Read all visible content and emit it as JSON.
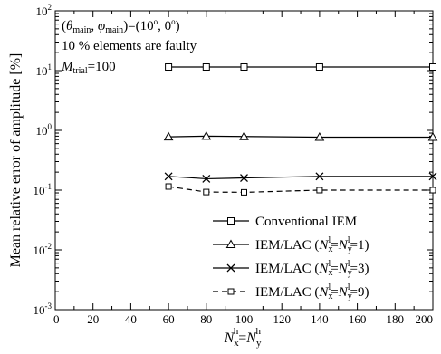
{
  "chart_data": {
    "type": "line",
    "title": "",
    "xlabel": {
      "base": "N",
      "sub": "x",
      "sup": "h",
      "eq": "=",
      "base2": "N",
      "sub2": "y",
      "sup2": "h"
    },
    "ylabel": "Mean relative error of amplitude [%]",
    "xlim": [
      0,
      200
    ],
    "ylim": [
      0.001,
      100
    ],
    "yscale": "log",
    "grid": false,
    "legend_position": "bottom-right",
    "x_ticks": [
      {
        "value": 0,
        "label": "0"
      },
      {
        "value": 20,
        "label": "20"
      },
      {
        "value": 40,
        "label": "40"
      },
      {
        "value": 60,
        "label": "60"
      },
      {
        "value": 80,
        "label": "80"
      },
      {
        "value": 100,
        "label": "100"
      },
      {
        "value": 120,
        "label": "120"
      },
      {
        "value": 140,
        "label": "140"
      },
      {
        "value": 160,
        "label": "160"
      },
      {
        "value": 180,
        "label": "180"
      },
      {
        "value": 200,
        "label": "200"
      }
    ],
    "y_ticks": [
      {
        "value": 0.001,
        "base": "10",
        "exp": "-3"
      },
      {
        "value": 0.01,
        "base": "10",
        "exp": "-2"
      },
      {
        "value": 0.1,
        "base": "10",
        "exp": "-1"
      },
      {
        "value": 1,
        "base": "10",
        "exp": "0"
      },
      {
        "value": 10,
        "base": "10",
        "exp": "1"
      },
      {
        "value": 100,
        "base": "10",
        "exp": "2"
      }
    ],
    "annotations": {
      "line1": {
        "open": "(",
        "theta": "θ",
        "theta_sub": "main",
        "comma": ", ",
        "phi": "φ",
        "phi_sub": "main",
        "eq": ")=(10",
        "deg": "o",
        "mid": ", 0",
        "deg2": "o",
        "close": ")"
      },
      "line2": "10 % elements are faulty",
      "line3": {
        "base": "M",
        "sub": "trial",
        "eq": "=100"
      }
    },
    "x": [
      60,
      80,
      100,
      140,
      200
    ],
    "series": [
      {
        "legend": {
          "text": "Conventional IEM"
        },
        "marker": "square",
        "dash": "",
        "values": [
          11.5,
          11.5,
          11.5,
          11.5,
          11.5
        ]
      },
      {
        "legend": {
          "pre": "IEM/LAC (",
          "n1": "N",
          "s1": "x",
          "p1": "l",
          "eq": "=",
          "n2": "N",
          "s2": "y",
          "p2": "l",
          "post": "=1)"
        },
        "marker": "triangle",
        "dash": "",
        "values": [
          0.78,
          0.8,
          0.79,
          0.77,
          0.77
        ]
      },
      {
        "legend": {
          "pre": "IEM/LAC (",
          "n1": "N",
          "s1": "x",
          "p1": "l",
          "eq": "=",
          "n2": "N",
          "s2": "y",
          "p2": "l",
          "post": "=3)"
        },
        "marker": "x",
        "dash": "",
        "values": [
          0.17,
          0.155,
          0.16,
          0.17,
          0.17
        ]
      },
      {
        "legend": {
          "pre": "IEM/LAC (",
          "n1": "N",
          "s1": "x",
          "p1": "l",
          "eq": "=",
          "n2": "N",
          "s2": "y",
          "p2": "l",
          "post": "=9)"
        },
        "marker": "square-small",
        "dash": "6,4",
        "values": [
          0.115,
          0.093,
          0.092,
          0.1,
          0.1
        ]
      }
    ]
  }
}
